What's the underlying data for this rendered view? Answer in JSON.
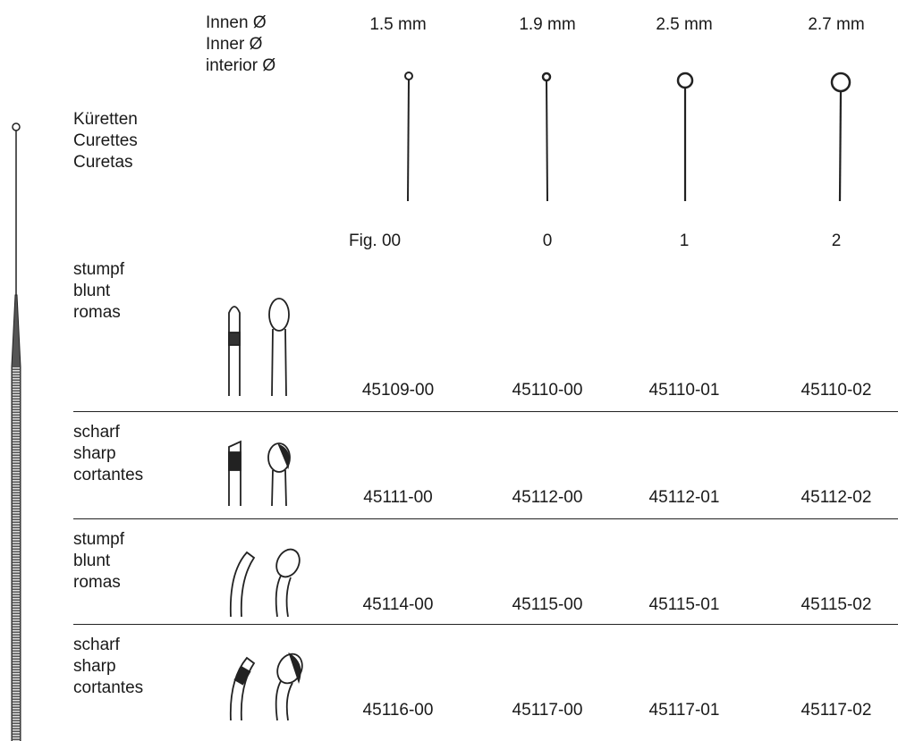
{
  "header": {
    "diameter_label": [
      "Innen Ø",
      "Inner Ø",
      "interior Ø"
    ],
    "sizes": [
      "1.5 mm",
      "1.9 mm",
      "2.5 mm",
      "2.7 mm"
    ],
    "product_label": [
      "Küretten",
      "Curettes",
      "Curetas"
    ],
    "figures": [
      "Fig. 00",
      "0",
      "1",
      "2"
    ]
  },
  "rows": [
    {
      "label": [
        "stumpf",
        "blunt",
        "romas"
      ],
      "codes": [
        "45109-00",
        "45110-00",
        "45110-01",
        "45110-02"
      ]
    },
    {
      "label": [
        "scharf",
        "sharp",
        "cortantes"
      ],
      "codes": [
        "45111-00",
        "45112-00",
        "45112-01",
        "45112-02"
      ]
    },
    {
      "label": [
        "stumpf",
        "blunt",
        "romas"
      ],
      "codes": [
        "45114-00",
        "45115-00",
        "45115-01",
        "45115-02"
      ]
    },
    {
      "label": [
        "scharf",
        "sharp",
        "cortantes"
      ],
      "codes": [
        "45116-00",
        "45117-00",
        "45117-01",
        "45117-02"
      ]
    }
  ]
}
